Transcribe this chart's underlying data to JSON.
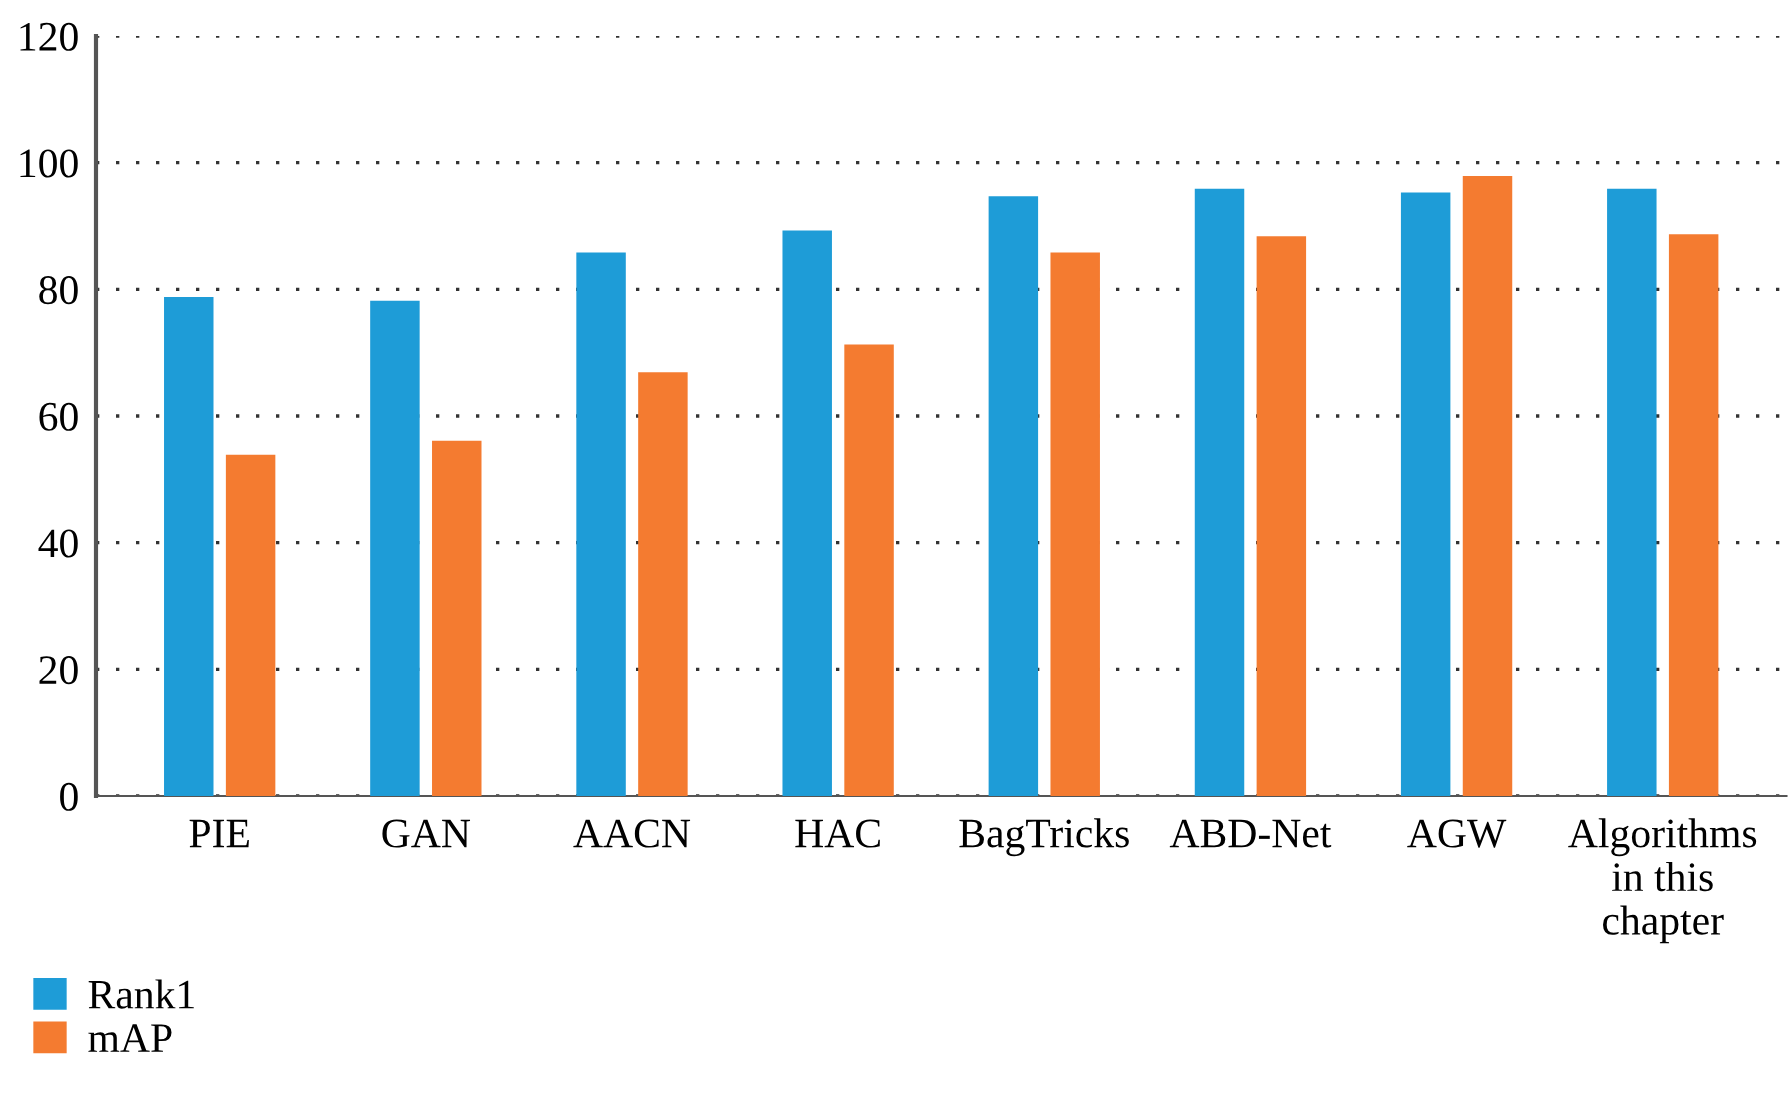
{
  "chart_data": {
    "type": "bar",
    "categories": [
      "PIE",
      "GAN",
      "AACN",
      "HAC",
      "BagTricks",
      "ABD-Net",
      "AGW",
      "Algorithms in this chapter"
    ],
    "series": [
      {
        "name": "Rank1",
        "color": "#1e9cd7",
        "values": [
          78.8,
          78.2,
          85.8,
          89.3,
          94.7,
          95.9,
          95.3,
          95.9
        ]
      },
      {
        "name": "mAP",
        "color": "#f47b30",
        "values": [
          53.9,
          56.1,
          66.9,
          71.3,
          85.8,
          88.4,
          97.9,
          88.7
        ]
      }
    ],
    "ylim": [
      0,
      120
    ],
    "yticks": [
      0,
      20,
      40,
      60,
      80,
      100,
      120
    ],
    "grid": "y",
    "legend": "bottom left"
  }
}
